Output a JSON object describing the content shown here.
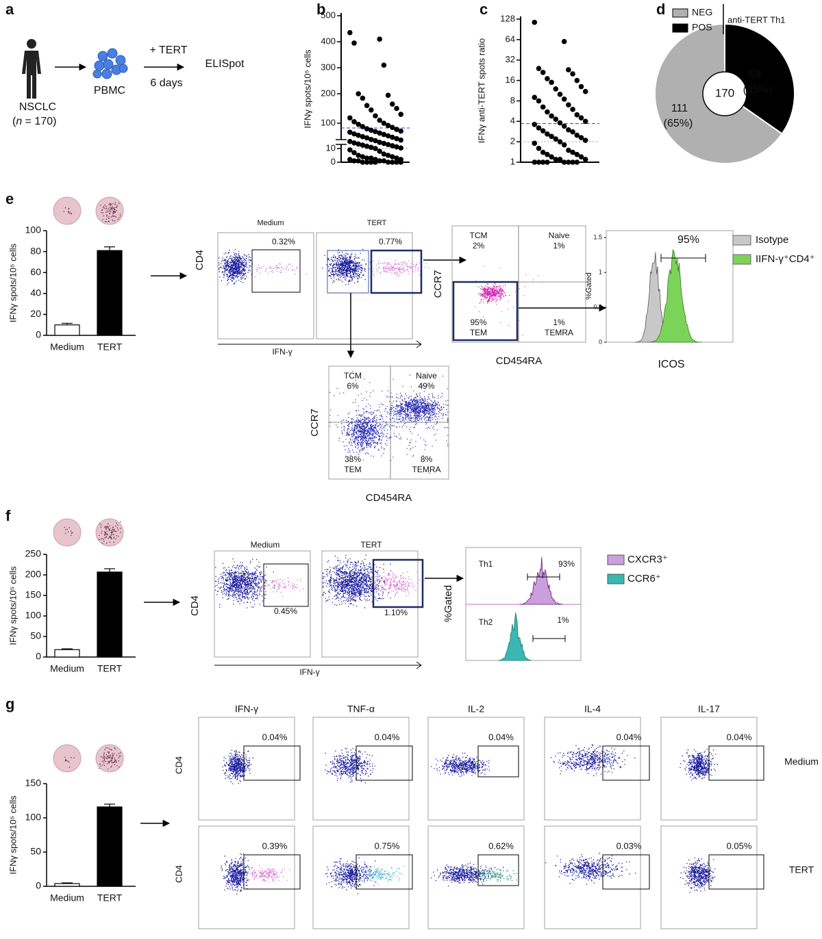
{
  "figure": {
    "panel_labels": {
      "a": "a",
      "b": "b",
      "c": "c",
      "d": "d",
      "e": "e",
      "f": "f",
      "g": "g"
    },
    "a": {
      "patient": "NSCLC",
      "n_open": "(",
      "n_var": "n",
      "n_rest": " = 170)",
      "cells": "PBMC",
      "stimulus": "+ TERT",
      "duration": "6 days",
      "assay": "ELISpot"
    },
    "e": {
      "conditions": [
        "Medium",
        "TERT"
      ],
      "gates": [
        "0.32%",
        "0.77%"
      ],
      "y_marker": "CD4",
      "x_marker": "IFN-γ",
      "quadrant1": {
        "tl_name": "TCM",
        "tl_pct": "2%",
        "tr_name": "Naive",
        "tr_pct": "1%",
        "bl_pct": "95%",
        "bl_name": "TEM",
        "br_pct": "1%",
        "br_name": "TEMRA",
        "y_marker": "CCR7",
        "x_marker": "CD454RA"
      },
      "quadrant2": {
        "tl_name": "TCM",
        "tl_pct": "6%",
        "tr_name": "Naive",
        "tr_pct": "49%",
        "bl_pct": "38%",
        "bl_name": "TEM",
        "br_pct": "8%",
        "br_name": "TEMRA",
        "y_marker": "CCR7",
        "x_marker": "CD454RA"
      },
      "histogram": {
        "ylabel": "%Gated",
        "xlabel": "ICOS",
        "gate": "95%",
        "ylim": [
          0,
          1.6
        ],
        "yticks": [
          0,
          0.5,
          1,
          1.5
        ],
        "legend": [
          "Isotype",
          "IIFN-γ⁺CD4⁺"
        ],
        "colors": [
          "#c8c8c8",
          "#7cd35a"
        ]
      }
    },
    "f": {
      "conditions": [
        "Medium",
        "TERT"
      ],
      "gates": [
        "0.45%",
        "1.10%"
      ],
      "y_marker": "CD4",
      "x_marker": "IFN-γ",
      "histogram": {
        "ylabel": "%Gated",
        "rows": [
          "Th1",
          "Th2"
        ],
        "gates": [
          "93%",
          "1%"
        ],
        "legend": [
          "CXCR3⁺",
          "CCR6⁺"
        ],
        "colors": [
          "#c9a0dc",
          "#3ab7b0"
        ]
      }
    },
    "g": {
      "columns": [
        "IFN-γ",
        "TNF-α",
        "IL-2",
        "IL-4",
        "IL-17"
      ],
      "rows": [
        "Medium",
        "TERT"
      ],
      "y_marker": "CD4",
      "gates": [
        [
          "0.04%",
          "0.04%",
          "0.04%",
          "0.04%",
          "0.04%"
        ],
        [
          "0.39%",
          "0.75%",
          "0.62%",
          "0.03%",
          "0.05%"
        ]
      ]
    },
    "d_legend_title": "anti-TERT Th1"
  },
  "chart_data": [
    {
      "type": "scatter",
      "ylabel": "IFNγ spots/10⁵ cells",
      "ylim": [
        0,
        500
      ],
      "yticks": [
        0,
        10,
        100,
        200,
        300,
        400,
        500
      ],
      "color": "#000000",
      "reference_lines": [
        {
          "value": 83,
          "color": "#3a3acc"
        },
        {
          "value": 10,
          "color": "#999999"
        }
      ],
      "values": [
        435,
        410,
        395,
        310,
        200,
        195,
        185,
        165,
        160,
        150,
        145,
        130,
        125,
        118,
        110,
        105,
        100,
        96,
        92,
        88,
        85,
        80,
        78,
        75,
        72,
        70,
        68,
        65,
        62,
        60,
        57,
        55,
        52,
        50,
        48,
        45,
        42,
        40,
        38,
        35,
        32,
        30,
        28,
        26,
        24,
        22,
        20,
        18,
        16,
        14,
        12,
        10,
        9,
        8,
        7,
        6,
        5,
        5,
        4,
        4,
        3,
        3,
        3,
        2,
        2,
        2,
        1,
        1,
        1,
        1,
        0,
        0,
        0,
        0,
        0,
        0,
        0,
        0
      ]
    },
    {
      "type": "scatter",
      "ylabel": "IFNγ anti-TERT spots ratio",
      "log_scale": true,
      "ylim": [
        1,
        128
      ],
      "yticks": [
        1,
        2,
        4,
        8,
        16,
        32,
        64,
        128
      ],
      "color": "#000000",
      "reference_lines": [
        {
          "value": 3.7,
          "color": "#3a3acc"
        },
        {
          "value": 2,
          "color": "#999999"
        }
      ],
      "values": [
        115,
        60,
        24,
        23,
        21,
        20,
        17,
        16,
        15,
        13,
        12,
        11,
        10,
        9,
        8.5,
        8,
        7,
        6.5,
        6,
        5.5,
        5,
        4.8,
        4.5,
        4.3,
        4,
        3.8,
        3.6,
        3.4,
        3.2,
        3,
        2.9,
        2.8,
        2.6,
        2.5,
        2.4,
        2.3,
        2.2,
        2.1,
        2,
        1.9,
        1.8,
        1.6,
        1.5,
        1.4,
        1.4,
        1.3,
        1.3,
        1.2,
        1.2,
        1.1,
        1.1,
        1.1,
        1,
        1,
        1,
        1,
        1,
        1,
        1,
        1
      ]
    },
    {
      "type": "pie",
      "categories": [
        "NEG",
        "POS"
      ],
      "values": [
        111,
        59
      ],
      "percentages": [
        65,
        35
      ],
      "percentage_labels": [
        "(65%)",
        "(35%)"
      ],
      "total": 170,
      "colors": [
        "#b0b0b0",
        "#000000"
      ]
    },
    {
      "type": "bar",
      "ylabel": "IFNγ spots/10⁵ cells",
      "categories": [
        "Medium",
        "TERT"
      ],
      "values": [
        10,
        81
      ],
      "errors": [
        1.5,
        3.5
      ],
      "ylim": [
        0,
        100
      ],
      "yticks": [
        0,
        20,
        40,
        60,
        80,
        100
      ],
      "colors": [
        "#ffffff",
        "#000000"
      ]
    },
    {
      "type": "bar",
      "ylabel": "IFNγ spots/10⁵ cells",
      "categories": [
        "Medium",
        "TERT"
      ],
      "values": [
        18,
        207
      ],
      "errors": [
        2,
        8
      ],
      "ylim": [
        0,
        250
      ],
      "yticks": [
        0,
        50,
        100,
        150,
        200,
        250
      ],
      "colors": [
        "#ffffff",
        "#000000"
      ]
    },
    {
      "type": "bar",
      "ylabel": "IFNγ spots/10⁵ cells",
      "categories": [
        "Medium",
        "TERT"
      ],
      "values": [
        4,
        116
      ],
      "errors": [
        1,
        4
      ],
      "ylim": [
        0,
        150
      ],
      "yticks": [
        0,
        50,
        100,
        150
      ],
      "colors": [
        "#ffffff",
        "#000000"
      ]
    }
  ]
}
